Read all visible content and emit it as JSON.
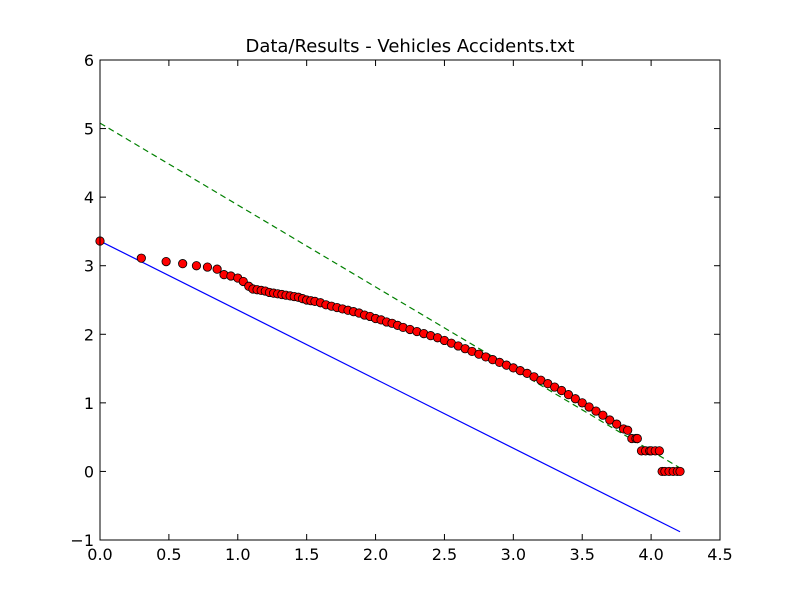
{
  "chart_data": {
    "type": "scatter",
    "title": "Data/Results - Vehicles Accidents.txt",
    "xlabel": "",
    "ylabel": "",
    "xlim": [
      0,
      4.5
    ],
    "ylim": [
      -1,
      6
    ],
    "xticks": [
      0,
      0.5,
      1,
      1.5,
      2,
      2.5,
      3,
      3.5,
      4,
      4.5
    ],
    "xtick_labels": [
      "0.0",
      "0.5",
      "1.0",
      "1.5",
      "2.0",
      "2.5",
      "3.0",
      "3.5",
      "4.0",
      "4.5"
    ],
    "yticks": [
      -1,
      0,
      1,
      2,
      3,
      4,
      5,
      6
    ],
    "ytick_labels": [
      "−1",
      "0",
      "1",
      "2",
      "3",
      "4",
      "5",
      "6"
    ],
    "grid": false,
    "legend": null,
    "colors": {
      "points_fill": "#ff0000",
      "points_edge": "#000000",
      "solid_line": "#0000ff",
      "dashed_line": "#008000"
    },
    "lines": [
      {
        "style": "solid",
        "color": "#0000ff",
        "x": [
          0,
          4.21
        ],
        "y": [
          3.36,
          -0.88
        ]
      },
      {
        "style": "dashed",
        "color": "#008000",
        "x": [
          0,
          4.21
        ],
        "y": [
          5.08,
          0.05
        ]
      }
    ],
    "series": [
      {
        "x": [
          0.0,
          0.3,
          0.48,
          0.6,
          0.7,
          0.78,
          0.85,
          0.9,
          0.95,
          1.0,
          1.04,
          1.08,
          1.11,
          1.14,
          1.17,
          1.2,
          1.23,
          1.26,
          1.29,
          1.32,
          1.35,
          1.38,
          1.41,
          1.44,
          1.47,
          1.5,
          1.53,
          1.56,
          1.6,
          1.64,
          1.68,
          1.72,
          1.76,
          1.8,
          1.84,
          1.88,
          1.92,
          1.96,
          2.0,
          2.04,
          2.08,
          2.12,
          2.16,
          2.2,
          2.25,
          2.3,
          2.35,
          2.4,
          2.45,
          2.5,
          2.55,
          2.6,
          2.65,
          2.7,
          2.75,
          2.8,
          2.85,
          2.9,
          2.95,
          3.0,
          3.05,
          3.1,
          3.15,
          3.2,
          3.25,
          3.3,
          3.35,
          3.4,
          3.45,
          3.5,
          3.55,
          3.6,
          3.65,
          3.7,
          3.75,
          3.8,
          3.83,
          3.86,
          3.89,
          3.9,
          3.93,
          3.96,
          3.99,
          4.0,
          4.03,
          4.06,
          4.08,
          4.1,
          4.13,
          4.16,
          4.19,
          4.21
        ],
        "y": [
          3.36,
          3.11,
          3.06,
          3.03,
          3.0,
          2.98,
          2.95,
          2.87,
          2.85,
          2.82,
          2.77,
          2.7,
          2.66,
          2.65,
          2.64,
          2.63,
          2.61,
          2.6,
          2.59,
          2.58,
          2.57,
          2.56,
          2.55,
          2.54,
          2.52,
          2.5,
          2.49,
          2.48,
          2.46,
          2.43,
          2.41,
          2.39,
          2.37,
          2.35,
          2.33,
          2.31,
          2.28,
          2.26,
          2.23,
          2.21,
          2.18,
          2.16,
          2.13,
          2.1,
          2.07,
          2.04,
          2.01,
          1.98,
          1.95,
          1.91,
          1.87,
          1.83,
          1.79,
          1.75,
          1.71,
          1.67,
          1.63,
          1.59,
          1.55,
          1.51,
          1.47,
          1.43,
          1.38,
          1.33,
          1.28,
          1.23,
          1.18,
          1.12,
          1.06,
          1.0,
          0.94,
          0.88,
          0.82,
          0.75,
          0.69,
          0.62,
          0.6,
          0.48,
          0.48,
          0.48,
          0.3,
          0.3,
          0.3,
          0.3,
          0.3,
          0.3,
          0.0,
          0.0,
          0.0,
          0.0,
          0.0,
          0.0
        ]
      }
    ]
  }
}
